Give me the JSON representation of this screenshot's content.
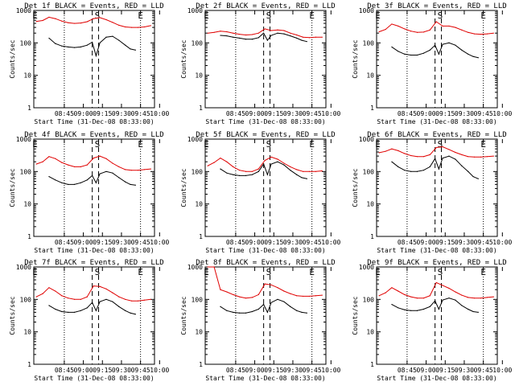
{
  "chart_data": [
    {
      "type": "line",
      "title": "Det 1f BLACK = Events, RED = LLD",
      "ylabel": "Counts/sec",
      "xlabel": "Start Time (31-Dec-08 08:33:00)",
      "xticks": [
        "08:45",
        "09:00",
        "09:15",
        "09:30",
        "09:45",
        "10:00"
      ],
      "yticks": [
        "1",
        "10",
        "100",
        "1000"
      ],
      "ylim": [
        1,
        1000
      ],
      "yscale": "log",
      "markers": [
        "E",
        "S",
        "E"
      ],
      "series": [
        {
          "name": "Events",
          "color": "#000000",
          "x": [
            0,
            5,
            10,
            15,
            20,
            25,
            30,
            34,
            37,
            40,
            45,
            50,
            55,
            60,
            64,
            68
          ],
          "y": [
            140,
            95,
            80,
            75,
            72,
            75,
            85,
            105,
            40,
            100,
            150,
            160,
            120,
            85,
            65,
            60
          ]
        },
        {
          "name": "LLD",
          "color": "#e00000",
          "x": [
            -10,
            -5,
            0,
            5,
            10,
            15,
            20,
            25,
            30,
            35,
            40,
            45,
            50,
            55,
            60,
            65,
            70,
            75,
            80
          ],
          "y": [
            460,
            490,
            620,
            560,
            470,
            420,
            400,
            410,
            450,
            560,
            600,
            520,
            430,
            350,
            310,
            300,
            300,
            310,
            340
          ]
        }
      ]
    },
    {
      "type": "line",
      "title": "Det 2f BLACK = Events, RED = LLD",
      "ylabel": "Counts/sec",
      "xlabel": "Start Time (31-Dec-08 08:33:00)",
      "xticks": [
        "08:45",
        "09:00",
        "09:15",
        "09:30",
        "09:45",
        "10:00"
      ],
      "yticks": [
        "1",
        "10",
        "100",
        "1000"
      ],
      "ylim": [
        1,
        1000
      ],
      "yscale": "log",
      "markers": [
        "E",
        "S",
        "E"
      ],
      "series": [
        {
          "name": "Events",
          "color": "#000000",
          "x": [
            0,
            5,
            10,
            15,
            20,
            25,
            30,
            34,
            37,
            40,
            45,
            50,
            55,
            60,
            64,
            68
          ],
          "y": [
            170,
            165,
            150,
            140,
            130,
            130,
            145,
            200,
            120,
            170,
            200,
            190,
            165,
            140,
            120,
            110
          ]
        },
        {
          "name": "LLD",
          "color": "#e00000",
          "x": [
            -10,
            -5,
            0,
            5,
            10,
            15,
            20,
            25,
            30,
            35,
            40,
            45,
            50,
            55,
            60,
            65,
            70,
            75,
            80
          ],
          "y": [
            200,
            210,
            230,
            220,
            200,
            185,
            175,
            180,
            200,
            270,
            240,
            250,
            240,
            200,
            175,
            150,
            145,
            150,
            150
          ]
        }
      ]
    },
    {
      "type": "line",
      "title": "Det 3f BLACK = Events, RED = LLD",
      "ylabel": "Counts/sec",
      "xlabel": "Start Time (31-Dec-08 08:33:00)",
      "xticks": [
        "08:45",
        "09:00",
        "09:15",
        "09:30",
        "09:45",
        "10:00"
      ],
      "yticks": [
        "1",
        "10",
        "100",
        "1000"
      ],
      "ylim": [
        1,
        1000
      ],
      "yscale": "log",
      "markers": [
        "E",
        "S",
        "E"
      ],
      "series": [
        {
          "name": "Events",
          "color": "#000000",
          "x": [
            0,
            5,
            10,
            15,
            20,
            25,
            30,
            34,
            37,
            40,
            45,
            50,
            55,
            60,
            64,
            68
          ],
          "y": [
            75,
            55,
            45,
            42,
            42,
            48,
            60,
            85,
            45,
            90,
            100,
            85,
            60,
            45,
            38,
            35
          ]
        },
        {
          "name": "LLD",
          "color": "#e00000",
          "x": [
            -10,
            -5,
            0,
            5,
            10,
            15,
            20,
            25,
            30,
            35,
            40,
            45,
            50,
            55,
            60,
            65,
            70,
            75,
            80
          ],
          "y": [
            220,
            260,
            380,
            330,
            270,
            230,
            210,
            215,
            250,
            450,
            330,
            330,
            300,
            250,
            210,
            190,
            185,
            190,
            200
          ]
        }
      ]
    },
    {
      "type": "line",
      "title": "Det 4f BLACK = Events, RED = LLD",
      "ylabel": "Counts/sec",
      "xlabel": "Start Time (31-Dec-08 08:33:00)",
      "xticks": [
        "08:45",
        "09:00",
        "09:15",
        "09:30",
        "09:45",
        "10:00"
      ],
      "yticks": [
        "1",
        "10",
        "100",
        "1000"
      ],
      "ylim": [
        1,
        1000
      ],
      "yscale": "log",
      "markers": [
        "E",
        "S",
        "E"
      ],
      "series": [
        {
          "name": "Events",
          "color": "#000000",
          "x": [
            0,
            5,
            10,
            15,
            20,
            25,
            30,
            34,
            37,
            40,
            45,
            50,
            55,
            60,
            64,
            68
          ],
          "y": [
            70,
            55,
            45,
            40,
            40,
            45,
            55,
            75,
            45,
            85,
            100,
            90,
            65,
            48,
            40,
            38
          ]
        },
        {
          "name": "LLD",
          "color": "#e00000",
          "x": [
            -10,
            -5,
            0,
            5,
            10,
            15,
            20,
            25,
            30,
            35,
            40,
            45,
            50,
            55,
            60,
            65,
            70,
            75,
            80
          ],
          "y": [
            170,
            200,
            290,
            250,
            190,
            160,
            140,
            140,
            160,
            260,
            300,
            250,
            180,
            140,
            115,
            110,
            110,
            115,
            120
          ]
        }
      ]
    },
    {
      "type": "line",
      "title": "Det 5f BLACK = Events, RED = LLD",
      "ylabel": "Counts/sec",
      "xlabel": "Start Time (31-Dec-08 08:33:00)",
      "xticks": [
        "08:45",
        "09:00",
        "09:15",
        "09:30",
        "09:45",
        "10:00"
      ],
      "yticks": [
        "1",
        "10",
        "100",
        "1000"
      ],
      "ylim": [
        1,
        1000
      ],
      "yscale": "log",
      "markers": [
        "E",
        "S",
        "E"
      ],
      "series": [
        {
          "name": "Events",
          "color": "#000000",
          "x": [
            0,
            5,
            10,
            15,
            20,
            25,
            30,
            34,
            37,
            40,
            45,
            50,
            55,
            60,
            64,
            68
          ],
          "y": [
            120,
            90,
            80,
            75,
            75,
            80,
            100,
            170,
            80,
            170,
            200,
            160,
            110,
            80,
            65,
            60
          ]
        },
        {
          "name": "LLD",
          "color": "#e00000",
          "x": [
            -10,
            -5,
            0,
            5,
            10,
            15,
            20,
            25,
            30,
            35,
            40,
            45,
            50,
            55,
            60,
            65,
            70,
            75,
            80
          ],
          "y": [
            150,
            190,
            260,
            200,
            140,
            110,
            100,
            100,
            120,
            220,
            280,
            240,
            180,
            140,
            115,
            100,
            100,
            100,
            105
          ]
        }
      ]
    },
    {
      "type": "line",
      "title": "Det 6f BLACK = Events, RED = LLD",
      "ylabel": "Counts/sec",
      "xlabel": "Start Time (31-Dec-08 08:33:00)",
      "xticks": [
        "08:45",
        "09:00",
        "09:15",
        "09:30",
        "09:45",
        "10:00"
      ],
      "yticks": [
        "1",
        "10",
        "100",
        "1000"
      ],
      "ylim": [
        1,
        1000
      ],
      "yscale": "log",
      "markers": [
        "E",
        "S",
        "E"
      ],
      "series": [
        {
          "name": "Events",
          "color": "#000000",
          "x": [
            0,
            5,
            10,
            15,
            20,
            25,
            30,
            34,
            37,
            40,
            45,
            50,
            55,
            60,
            64,
            68
          ],
          "y": [
            200,
            140,
            110,
            100,
            100,
            110,
            140,
            250,
            120,
            260,
            300,
            240,
            150,
            100,
            70,
            60
          ]
        },
        {
          "name": "LLD",
          "color": "#e00000",
          "x": [
            -10,
            -5,
            0,
            5,
            10,
            15,
            20,
            25,
            30,
            35,
            40,
            45,
            50,
            55,
            60,
            65,
            70,
            75,
            80
          ],
          "y": [
            380,
            420,
            500,
            440,
            360,
            310,
            290,
            290,
            330,
            550,
            580,
            480,
            390,
            330,
            290,
            280,
            280,
            290,
            300
          ]
        }
      ]
    },
    {
      "type": "line",
      "title": "Det 7f BLACK = Events, RED = LLD",
      "ylabel": "Counts/sec",
      "xlabel": "Start Time (31-Dec-08 08:33:00)",
      "xticks": [
        "08:45",
        "09:00",
        "09:15",
        "09:30",
        "09:45",
        "10:00"
      ],
      "yticks": [
        "1",
        "10",
        "100",
        "1000"
      ],
      "ylim": [
        1,
        1000
      ],
      "yscale": "log",
      "markers": [
        "E",
        "S",
        "E"
      ],
      "series": [
        {
          "name": "Events",
          "color": "#000000",
          "x": [
            0,
            5,
            10,
            15,
            20,
            25,
            30,
            34,
            37,
            40,
            45,
            50,
            55,
            60,
            64,
            68
          ],
          "y": [
            65,
            50,
            42,
            40,
            40,
            45,
            55,
            80,
            45,
            85,
            100,
            85,
            60,
            45,
            38,
            35
          ]
        },
        {
          "name": "LLD",
          "color": "#e00000",
          "x": [
            -10,
            -5,
            0,
            5,
            10,
            15,
            20,
            25,
            30,
            35,
            40,
            45,
            50,
            55,
            60,
            65,
            70,
            75,
            80
          ],
          "y": [
            120,
            150,
            230,
            180,
            130,
            110,
            100,
            100,
            120,
            260,
            250,
            210,
            160,
            120,
            100,
            90,
            90,
            95,
            100
          ]
        }
      ]
    },
    {
      "type": "line",
      "title": "Det 8f BLACK = Events, RED = LLD",
      "ylabel": "Counts/sec",
      "xlabel": "Start Time (31-Dec-08 08:33:00)",
      "xticks": [
        "08:45",
        "09:00",
        "09:15",
        "09:30",
        "09:45",
        "10:00"
      ],
      "yticks": [
        "1",
        "10",
        "100",
        "1000"
      ],
      "ylim": [
        1,
        1000
      ],
      "yscale": "log",
      "markers": [
        "E",
        "S",
        "E"
      ],
      "series": [
        {
          "name": "Events",
          "color": "#000000",
          "x": [
            0,
            5,
            10,
            15,
            20,
            25,
            30,
            34,
            37,
            40,
            45,
            50,
            55,
            60,
            64,
            68
          ],
          "y": [
            60,
            45,
            40,
            38,
            38,
            42,
            50,
            70,
            40,
            80,
            100,
            85,
            60,
            45,
            40,
            38
          ]
        },
        {
          "name": "LLD",
          "color": "#e00000",
          "x": [
            -10,
            -5,
            0,
            5,
            10,
            15,
            20,
            25,
            30,
            35,
            40,
            45,
            50,
            55,
            60,
            65,
            70,
            75,
            80
          ],
          "y": [
            1000,
            1000,
            200,
            170,
            140,
            120,
            110,
            115,
            140,
            300,
            280,
            230,
            180,
            150,
            130,
            125,
            125,
            130,
            135
          ]
        }
      ]
    },
    {
      "type": "line",
      "title": "Det 9f BLACK = Events, RED = LLD",
      "ylabel": "Counts/sec",
      "xlabel": "Start Time (31-Dec-08 08:33:00)",
      "xticks": [
        "08:45",
        "09:00",
        "09:15",
        "09:30",
        "09:45",
        "10:00"
      ],
      "yticks": [
        "1",
        "10",
        "100",
        "1000"
      ],
      "ylim": [
        1,
        1000
      ],
      "yscale": "log",
      "markers": [
        "E",
        "S",
        "E"
      ],
      "series": [
        {
          "name": "Events",
          "color": "#000000",
          "x": [
            0,
            5,
            10,
            15,
            20,
            25,
            30,
            34,
            37,
            40,
            45,
            50,
            55,
            60,
            64,
            68
          ],
          "y": [
            70,
            55,
            48,
            45,
            45,
            50,
            60,
            90,
            50,
            95,
            110,
            95,
            65,
            50,
            42,
            40
          ]
        },
        {
          "name": "LLD",
          "color": "#e00000",
          "x": [
            -10,
            -5,
            0,
            5,
            10,
            15,
            20,
            25,
            30,
            35,
            40,
            45,
            50,
            55,
            60,
            65,
            70,
            75,
            80
          ],
          "y": [
            130,
            160,
            230,
            180,
            140,
            120,
            110,
            110,
            130,
            330,
            270,
            220,
            170,
            135,
            115,
            110,
            110,
            115,
            120
          ]
        }
      ]
    }
  ]
}
